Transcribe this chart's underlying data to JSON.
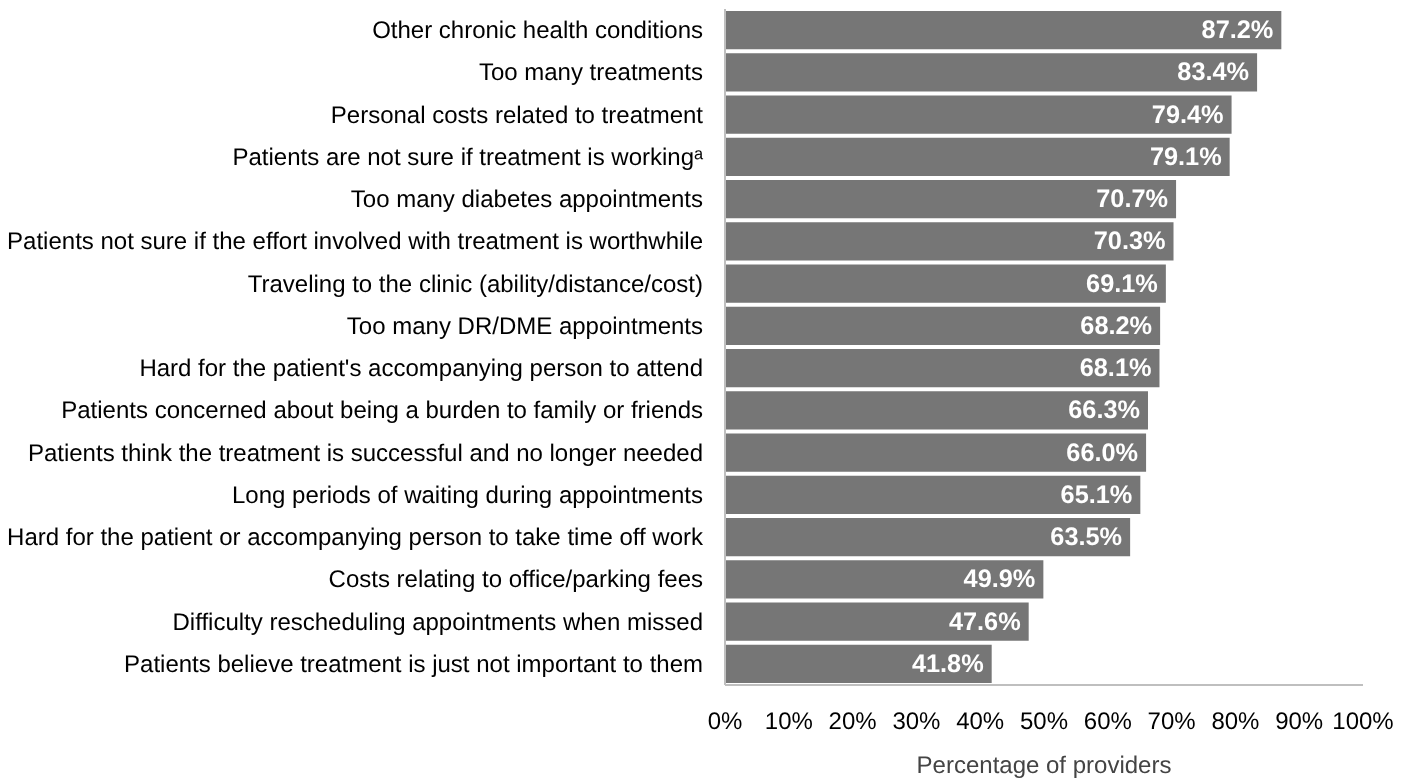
{
  "chart_data": {
    "type": "bar",
    "orientation": "horizontal",
    "xlabel": "Percentage of providers",
    "categories": [
      "Other chronic health conditions",
      "Too many treatments",
      "Personal costs related to treatment",
      "Patients are not sure if treatment is workingᵃ",
      "Too many diabetes appointments",
      "Patients not sure if the effort involved with treatment is worthwhile",
      "Traveling to the clinic (ability/distance/cost)",
      "Too many DR/DME appointments",
      "Hard for the patient's accompanying person to attend",
      "Patients concerned about being a burden to family or friends",
      "Patients think the treatment is successful and no longer needed",
      "Long periods of waiting during appointments",
      "Hard for the patient or accompanying person to take time off work",
      "Costs relating to office/parking fees",
      "Difficulty rescheduling appointments when missed",
      "Patients believe treatment is just not important to them"
    ],
    "values": [
      87.2,
      83.4,
      79.4,
      79.1,
      70.7,
      70.3,
      69.1,
      68.2,
      68.1,
      66.3,
      66.0,
      65.1,
      63.5,
      49.9,
      47.6,
      41.8
    ],
    "value_labels": [
      "87.2%",
      "83.4%",
      "79.4%",
      "79.1%",
      "70.7%",
      "70.3%",
      "69.1%",
      "68.2%",
      "68.1%",
      "66.3%",
      "66.0%",
      "65.1%",
      "63.5%",
      "49.9%",
      "47.6%",
      "41.8%"
    ],
    "color": "#767676",
    "xlim": [
      0,
      100
    ],
    "xticks": [
      {
        "value": 0,
        "label": "0%"
      },
      {
        "value": 10,
        "label": "10%"
      },
      {
        "value": 20,
        "label": "20%"
      },
      {
        "value": 30,
        "label": "30%"
      },
      {
        "value": 40,
        "label": "40%"
      },
      {
        "value": 50,
        "label": "50%"
      },
      {
        "value": 60,
        "label": "60%"
      },
      {
        "value": 70,
        "label": "70%"
      },
      {
        "value": 80,
        "label": "80%"
      },
      {
        "value": 90,
        "label": "90%"
      },
      {
        "value": 100,
        "label": "100%"
      }
    ],
    "grid": false
  }
}
